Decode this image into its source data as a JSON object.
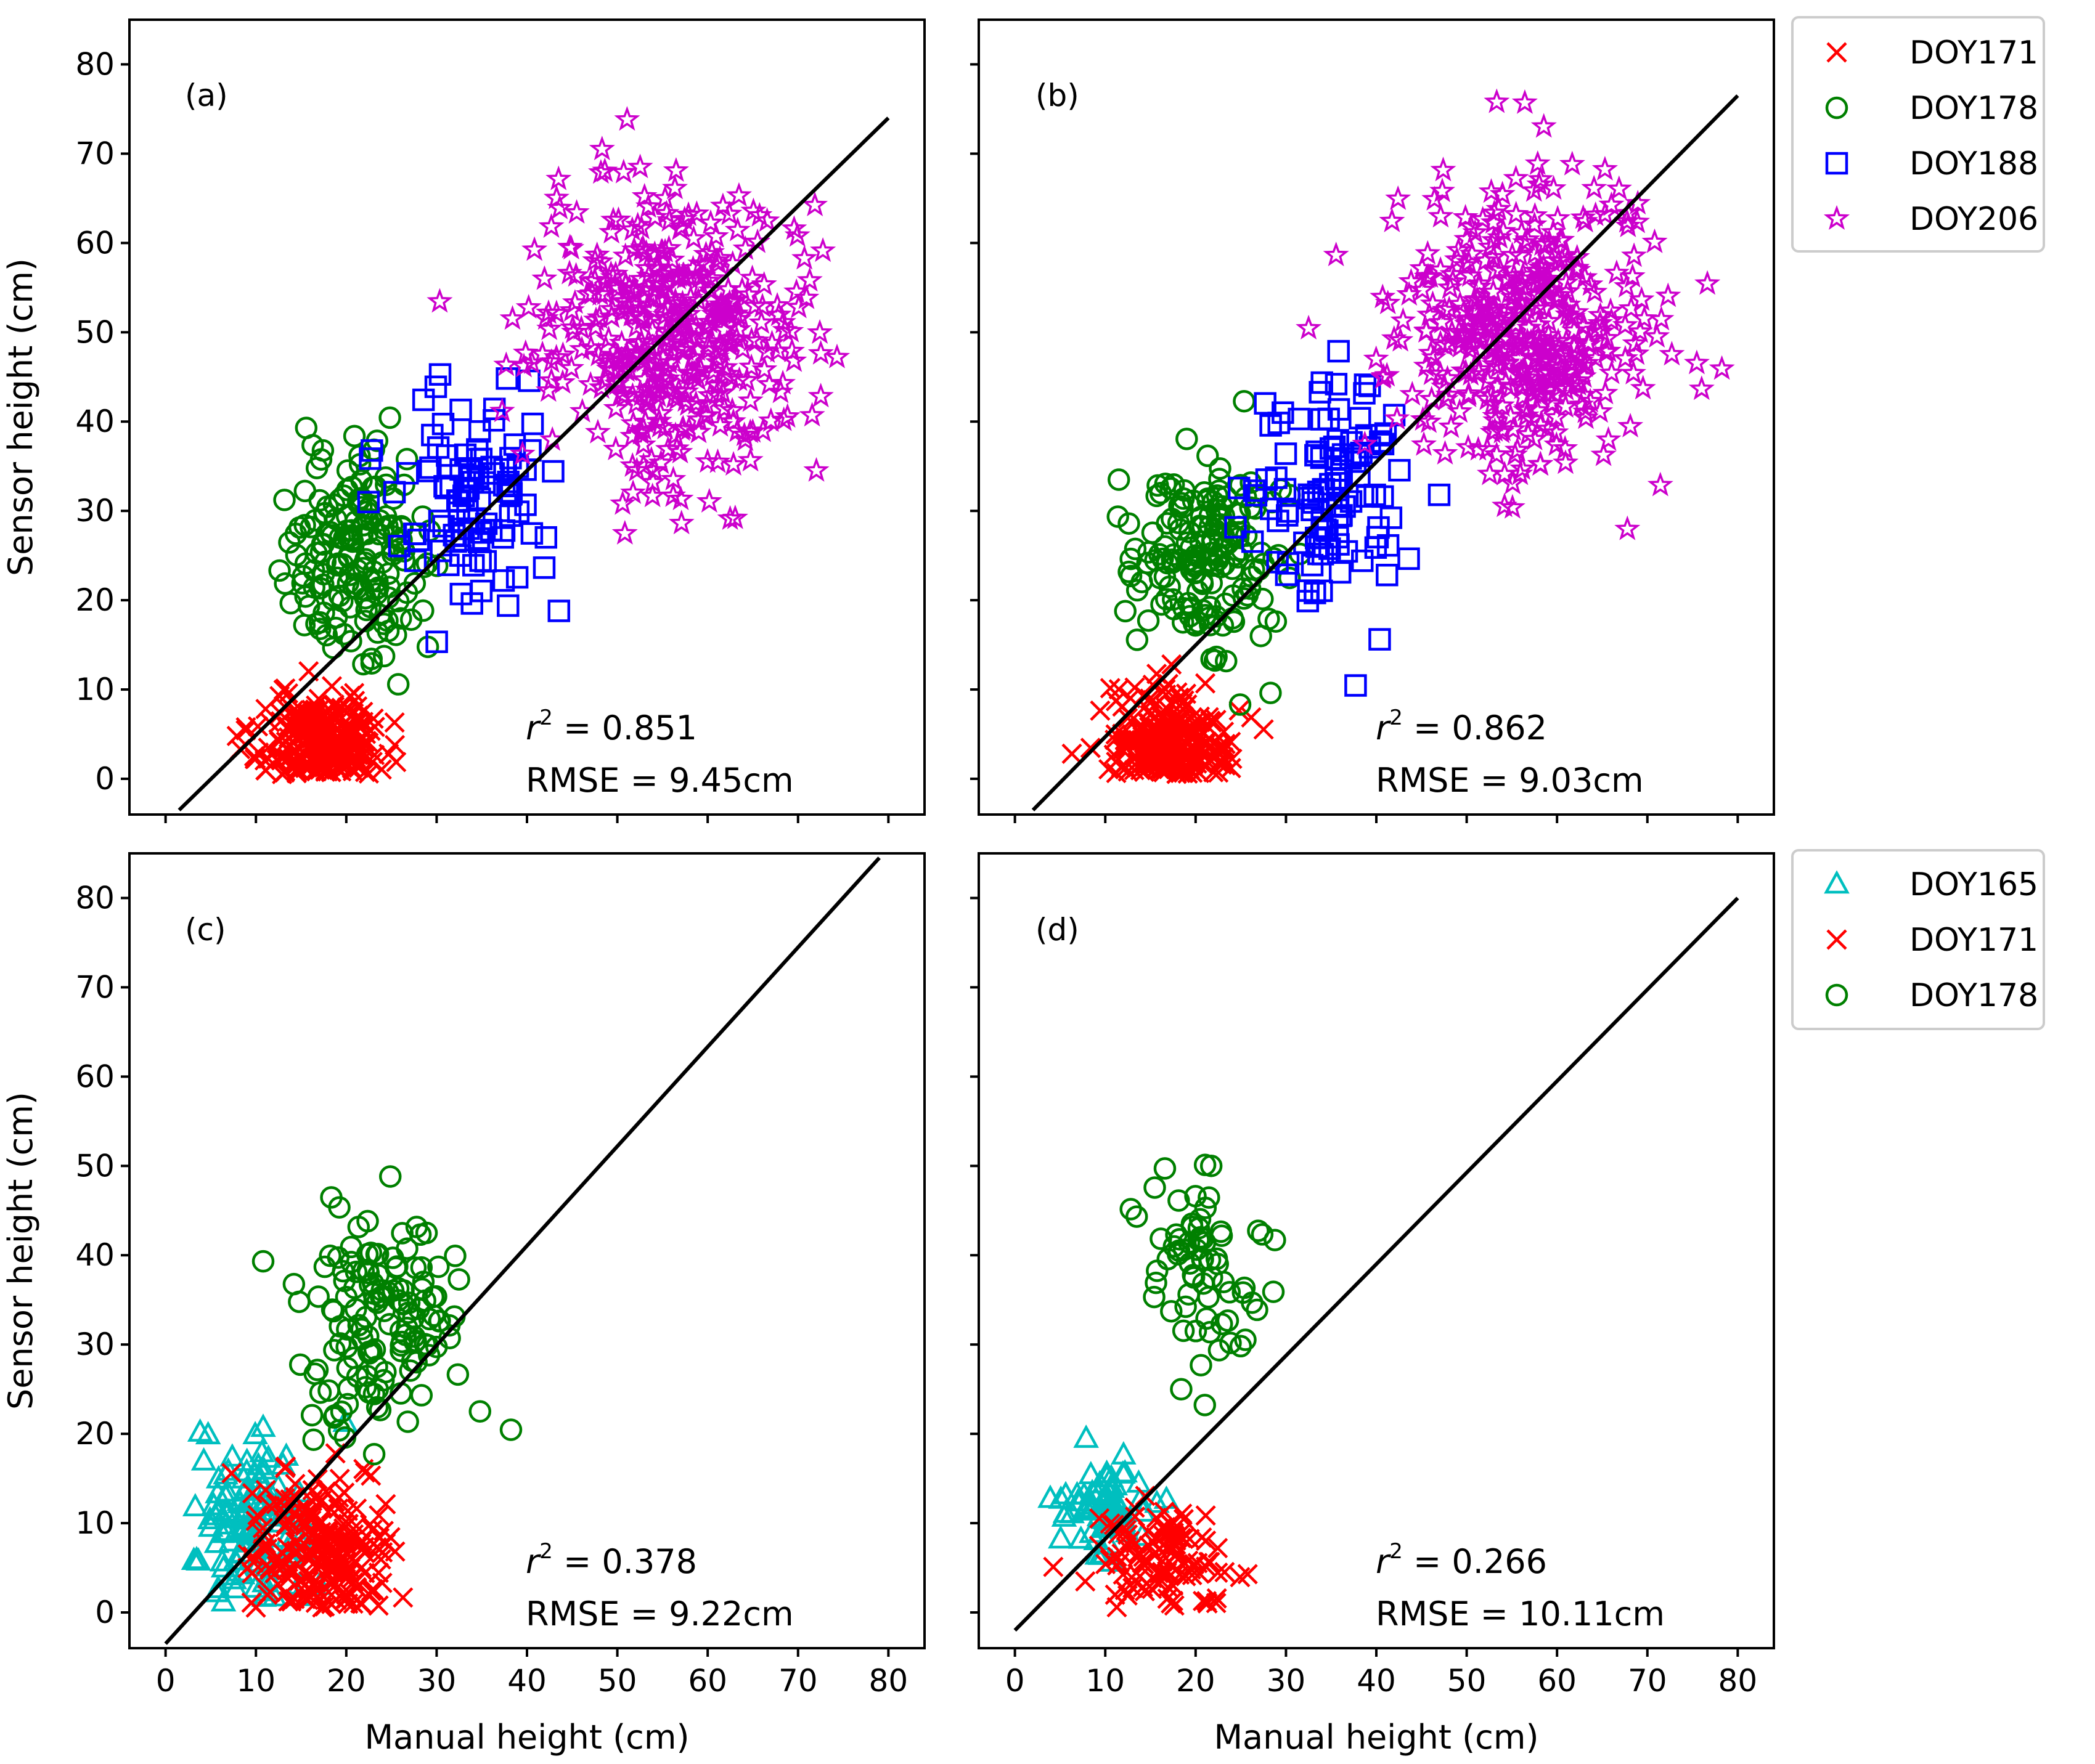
{
  "figure": {
    "xlabel": "Manual height (cm)",
    "ylabel": "Sensor height (cm)",
    "xticks": [
      0,
      10,
      20,
      30,
      40,
      50,
      60,
      70,
      80
    ],
    "yticks": [
      0,
      10,
      20,
      30,
      40,
      50,
      60,
      70,
      80
    ]
  },
  "colors": {
    "DOY165": "#00bfbf",
    "DOY171": "#ff0000",
    "DOY178": "#008000",
    "DOY188": "#0000ff",
    "DOY206": "#cc00cc",
    "fit_line": "#000000"
  },
  "legend_top": [
    {
      "label": "DOY171",
      "key": "DOY171",
      "marker": "x"
    },
    {
      "label": "DOY178",
      "key": "DOY178",
      "marker": "circle"
    },
    {
      "label": "DOY188",
      "key": "DOY188",
      "marker": "square"
    },
    {
      "label": "DOY206",
      "key": "DOY206",
      "marker": "star"
    }
  ],
  "legend_bottom": [
    {
      "label": "DOY165",
      "key": "DOY165",
      "marker": "triangle"
    },
    {
      "label": "DOY171",
      "key": "DOY171",
      "marker": "x"
    },
    {
      "label": "DOY178",
      "key": "DOY178",
      "marker": "circle"
    }
  ],
  "chart_data": [
    {
      "type": "scatter",
      "panel": "(a)",
      "xlim": [
        -4,
        84
      ],
      "ylim": [
        -4,
        85
      ],
      "r2_label": " = 0.851",
      "rmse_label": "RMSE = 9.45cm",
      "fit_line": {
        "x": [
          1.5,
          80
        ],
        "y": [
          -3.5,
          74
        ]
      },
      "series": [
        {
          "name": "DOY171",
          "marker": "x",
          "center": [
            17,
            4
          ],
          "spread": [
            3.5,
            3
          ],
          "n": 260
        },
        {
          "name": "DOY178",
          "marker": "circle",
          "center": [
            21,
            25
          ],
          "spread": [
            4,
            5.5
          ],
          "n": 170
        },
        {
          "name": "DOY188",
          "marker": "square",
          "center": [
            34,
            31
          ],
          "spread": [
            4.5,
            6
          ],
          "n": 100
        },
        {
          "name": "DOY206",
          "marker": "star",
          "center": [
            56,
            50
          ],
          "spread": [
            7.5,
            8
          ],
          "n": 420
        }
      ]
    },
    {
      "type": "scatter",
      "panel": "(b)",
      "xlim": [
        -4,
        84
      ],
      "ylim": [
        -4,
        85
      ],
      "r2_label": " = 0.862",
      "rmse_label": "RMSE = 9.03cm",
      "fit_line": {
        "x": [
          2,
          80
        ],
        "y": [
          -3.5,
          76.5
        ]
      },
      "series": [
        {
          "name": "DOY171",
          "marker": "x",
          "center": [
            17,
            4
          ],
          "spread": [
            3.5,
            3
          ],
          "n": 260
        },
        {
          "name": "DOY178",
          "marker": "circle",
          "center": [
            21,
            25
          ],
          "spread": [
            4,
            5.5
          ],
          "n": 170
        },
        {
          "name": "DOY188",
          "marker": "square",
          "center": [
            36,
            32
          ],
          "spread": [
            5,
            7
          ],
          "n": 110
        },
        {
          "name": "DOY206",
          "marker": "star",
          "center": [
            56,
            50
          ],
          "spread": [
            7.5,
            8
          ],
          "n": 420
        }
      ]
    },
    {
      "type": "scatter",
      "panel": "(c)",
      "xlim": [
        -4,
        84
      ],
      "ylim": [
        -4,
        85
      ],
      "r2_label": " = 0.378",
      "rmse_label": "RMSE = 9.22cm",
      "fit_line": {
        "x": [
          0,
          79
        ],
        "y": [
          -3.5,
          84.5
        ]
      },
      "series": [
        {
          "name": "DOY165",
          "marker": "triangle",
          "center": [
            10,
            10
          ],
          "spread": [
            3,
            4
          ],
          "n": 130
        },
        {
          "name": "DOY171",
          "marker": "x",
          "center": [
            17,
            7
          ],
          "spread": [
            4,
            4.5
          ],
          "n": 220
        },
        {
          "name": "DOY178",
          "marker": "circle",
          "center": [
            24,
            33
          ],
          "spread": [
            4.5,
            6
          ],
          "n": 140
        }
      ]
    },
    {
      "type": "scatter",
      "panel": "(d)",
      "xlim": [
        -4,
        84
      ],
      "ylim": [
        -4,
        85
      ],
      "r2_label": " = 0.266",
      "rmse_label": "RMSE = 10.11cm",
      "fit_line": {
        "x": [
          0,
          80
        ],
        "y": [
          -2,
          80
        ]
      },
      "series": [
        {
          "name": "DOY165",
          "marker": "triangle",
          "center": [
            10,
            12
          ],
          "spread": [
            2.5,
            2.5
          ],
          "n": 70
        },
        {
          "name": "DOY171",
          "marker": "x",
          "center": [
            16,
            6
          ],
          "spread": [
            4,
            3
          ],
          "n": 110
        },
        {
          "name": "DOY178",
          "marker": "circle",
          "center": [
            21,
            36
          ],
          "spread": [
            4.5,
            6
          ],
          "n": 70
        }
      ]
    }
  ]
}
